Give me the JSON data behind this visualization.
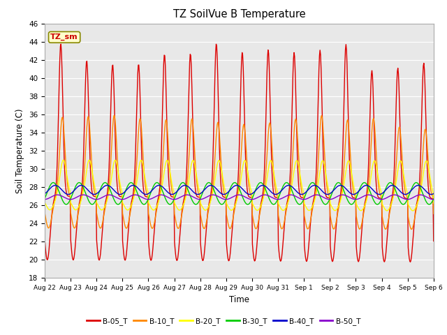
{
  "title": "TZ SoilVue B Temperature",
  "xlabel": "Time",
  "ylabel": "Soil Temperature (C)",
  "ylim": [
    18,
    46
  ],
  "yticks": [
    18,
    20,
    22,
    24,
    26,
    28,
    30,
    32,
    34,
    36,
    38,
    40,
    42,
    44,
    46
  ],
  "fig_bg": "#ffffff",
  "plot_bg": "#e8e8e8",
  "series_colors": {
    "B-05_T": "#dd0000",
    "B-10_T": "#ff8800",
    "B-20_T": "#ffff00",
    "B-30_T": "#00cc00",
    "B-40_T": "#0000cc",
    "B-50_T": "#8800cc"
  },
  "annotation_label": "TZ_sm",
  "annotation_color": "#cc0000",
  "annotation_bg": "#ffffcc",
  "annotation_border": "#888800",
  "day_labels": [
    "Aug 22",
    "Aug 23",
    "Aug 24",
    "Aug 25",
    "Aug 26",
    "Aug 27",
    "Aug 28",
    "Aug 29",
    "Aug 30",
    "Aug 31",
    "Sep 1",
    "Sep 2",
    "Sep 3",
    "Sep 4",
    "Sep 5",
    "Sep 6"
  ],
  "num_days": 15,
  "pts_per_day": 48
}
